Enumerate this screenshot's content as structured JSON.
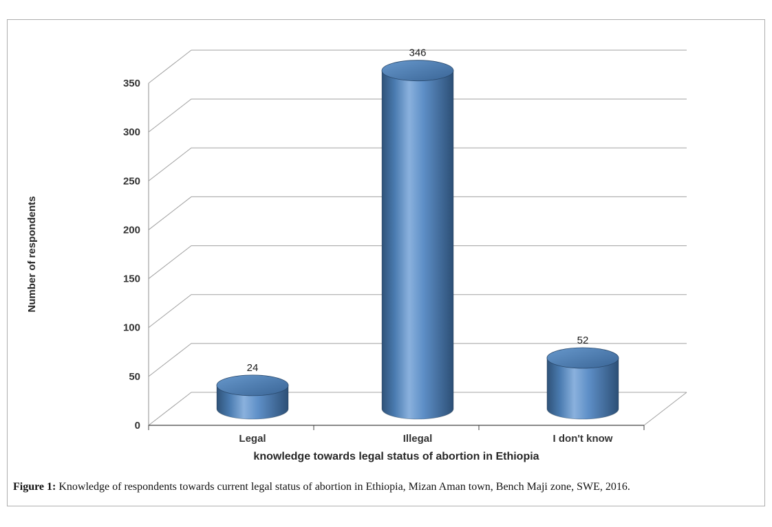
{
  "chart_data": {
    "type": "bar",
    "subtype": "3d-cylinder",
    "categories": [
      "Legal",
      "Illegal",
      "I don't know"
    ],
    "values": [
      24,
      346,
      52
    ],
    "data_labels": [
      "24",
      "346",
      "52"
    ],
    "title": "",
    "xlabel": "knowledge towards legal status of abortion in Ethiopia",
    "ylabel": "Number of respondents",
    "ylim": [
      0,
      350
    ],
    "ytick_step": 50,
    "yticks": [
      0,
      50,
      100,
      150,
      200,
      250,
      300,
      350
    ],
    "grid": true,
    "legend": "none",
    "bar_color": "#4f81bd",
    "gridline_color": "#a0a0a0",
    "axis_color": "#404040"
  },
  "caption": {
    "prefix": "Figure 1:",
    "text": " Knowledge of respondents towards current legal status of abortion in Ethiopia, Mizan Aman town, Bench Maji zone, SWE, 2016."
  }
}
